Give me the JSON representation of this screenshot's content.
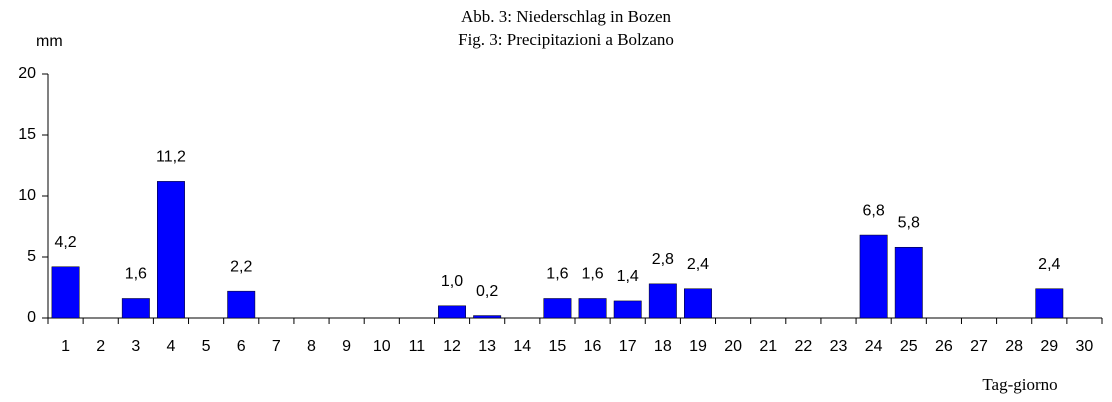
{
  "chart_data": {
    "type": "bar",
    "title": "Abb. 3: Niederschlag in Bozen",
    "subtitle": "Fig. 3: Precipitazioni a Bolzano",
    "y_label": "mm",
    "x_label": "Tag-giorno",
    "categories": [
      "1",
      "2",
      "3",
      "4",
      "5",
      "6",
      "7",
      "8",
      "9",
      "10",
      "11",
      "12",
      "13",
      "14",
      "15",
      "16",
      "17",
      "18",
      "19",
      "20",
      "21",
      "22",
      "23",
      "24",
      "25",
      "26",
      "27",
      "28",
      "29",
      "30"
    ],
    "values": [
      4.2,
      0,
      1.6,
      11.2,
      0,
      2.2,
      0,
      0,
      0,
      0,
      0,
      1.0,
      0.2,
      0,
      1.6,
      1.6,
      1.4,
      2.8,
      2.4,
      0,
      0,
      0,
      0,
      6.8,
      5.8,
      0,
      0,
      0,
      2.4,
      0
    ],
    "value_labels": [
      "4,2",
      null,
      "1,6",
      "11,2",
      null,
      "2,2",
      null,
      null,
      null,
      null,
      null,
      "1,0",
      "0,2",
      null,
      "1,6",
      "1,6",
      "1,4",
      "2,8",
      "2,4",
      null,
      null,
      null,
      null,
      "6,8",
      "5,8",
      null,
      null,
      null,
      "2,4",
      null
    ],
    "color": "#0000ff",
    "ylim": [
      0,
      20
    ],
    "yticks": [
      0,
      5,
      10,
      15,
      20
    ],
    "grid": false
  }
}
